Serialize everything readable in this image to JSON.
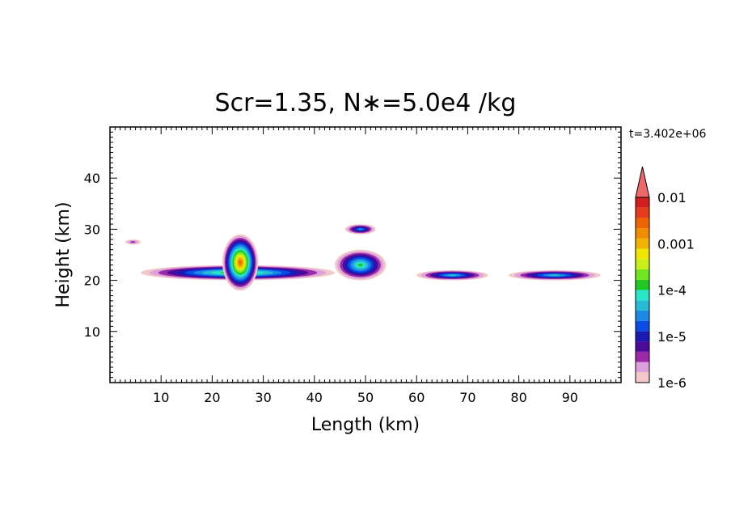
{
  "chart_data": {
    "type": "heatmap",
    "title": "Scr=1.35, N∗=5.0e4 /kg",
    "time_label": "t=3.402e+06",
    "xlabel": "Length  (km)",
    "ylabel": "Height  (km)",
    "xlim": [
      0,
      100
    ],
    "ylim": [
      0,
      50
    ],
    "xticks": [
      10,
      20,
      30,
      40,
      50,
      60,
      70,
      80,
      90
    ],
    "yticks": [
      10,
      20,
      30,
      40
    ],
    "colorbar": {
      "scale": "log",
      "range": [
        1e-06,
        0.01
      ],
      "tick_labels": [
        "0.01",
        "0.001",
        "1e-4",
        "1e-5",
        "1e-6"
      ],
      "levels": [
        "#f2c8c8",
        "#dca0dc",
        "#9a2aa8",
        "#4a0a9a",
        "#1a1ab4",
        "#0a4ce6",
        "#1a8ae6",
        "#26bcd8",
        "#28e6c8",
        "#22c822",
        "#70e620",
        "#c8f018",
        "#f0e600",
        "#f0b400",
        "#f08c00",
        "#f06400",
        "#e63c1e",
        "#d21e1e",
        "#ee6a6a"
      ],
      "extend": "max"
    },
    "features": [
      {
        "name": "main layer",
        "x": [
          6,
          44
        ],
        "y": [
          20,
          23
        ],
        "peak_level": 10
      },
      {
        "name": "convective plume",
        "x": [
          22,
          29
        ],
        "y": [
          18,
          29
        ],
        "peak_level": 15
      },
      {
        "name": "small patch",
        "x": [
          3,
          6
        ],
        "y": [
          27,
          28
        ],
        "peak_level": 2
      },
      {
        "name": "layer segment",
        "x": [
          44,
          54
        ],
        "y": [
          20,
          26
        ],
        "peak_level": 9
      },
      {
        "name": "upper patch",
        "x": [
          46,
          52
        ],
        "y": [
          29,
          31
        ],
        "peak_level": 6
      },
      {
        "name": "layer segment",
        "x": [
          60,
          74
        ],
        "y": [
          20,
          22
        ],
        "peak_level": 7
      },
      {
        "name": "layer segment",
        "x": [
          78,
          96
        ],
        "y": [
          20,
          22
        ],
        "peak_level": 7
      }
    ]
  }
}
